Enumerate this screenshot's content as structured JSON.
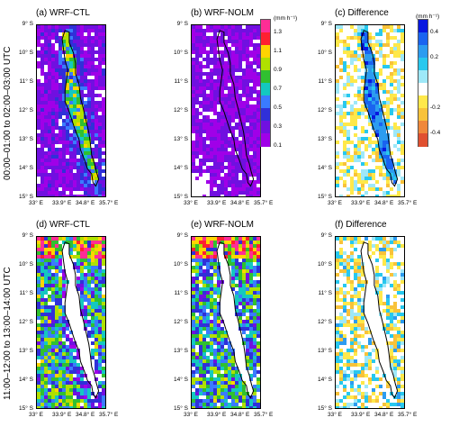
{
  "row_labels": [
    "00:00–01:00 to 02:00–03:00 UTC",
    "11:00–12:00 to 13:00–14:00 UTC"
  ],
  "panels": [
    {
      "title": "(a) WRF-CTL",
      "kind": "ctl_night"
    },
    {
      "title": "(b) WRF-NOLM",
      "kind": "nolm_night"
    },
    {
      "title": "(c) Difference",
      "kind": "diff_night"
    },
    {
      "title": "(d) WRF-CTL",
      "kind": "ctl_day"
    },
    {
      "title": "(e) WRF-NOLM",
      "kind": "nolm_day"
    },
    {
      "title": "(f) Difference",
      "kind": "diff_day"
    }
  ],
  "axes": {
    "x_ticks": [
      "33° E",
      "33.9° E",
      "34.8° E",
      "35.7° E"
    ],
    "y_ticks": [
      "9° S",
      "10° S",
      "11° S",
      "12° S",
      "13° S",
      "14° S",
      "15° S"
    ]
  },
  "colorbars": {
    "rain": {
      "unit": "(mm h⁻¹)",
      "ticks": [
        "1.3",
        "1.1",
        "0.9",
        "0.7",
        "0.5",
        "0.3",
        "0.1"
      ],
      "colors": [
        "#ff2d95",
        "#ff2030",
        "#ffd400",
        "#b0e000",
        "#30c030",
        "#14c8c0",
        "#3a7bff",
        "#3030d8",
        "#7010e0",
        "#a000e8"
      ]
    },
    "diff": {
      "unit": "(mm h⁻¹)",
      "ticks": [
        "0.4",
        "0.2",
        "-0.2",
        "-0.4"
      ],
      "colors": [
        "#0818e0",
        "#1a64f0",
        "#2c9cf0",
        "#28c8ee",
        "#9ee8f8",
        "#ffffff",
        "#ffe84a",
        "#f8c23a",
        "#f0883a",
        "#e05030"
      ]
    }
  },
  "chart_data": [
    {
      "type": "heatmap",
      "title": "(a) WRF-CTL",
      "ylabel": "00:00–01:00 to 02:00–03:00 UTC",
      "xlim": [
        "33° E",
        "35.7° E"
      ],
      "ylim": [
        "15° S",
        "9° S"
      ],
      "value_range": [
        0.1,
        1.3
      ],
      "dominant_range": [
        0.1,
        0.5
      ],
      "notes": "higher values 0.5–1.1 over the lake"
    },
    {
      "type": "heatmap",
      "title": "(b) WRF-NOLM",
      "xlim": [
        "33° E",
        "35.7° E"
      ],
      "ylim": [
        "15° S",
        "9° S"
      ],
      "value_range": [
        0.1,
        1.3
      ],
      "dominant_range": [
        0.1,
        0.3
      ]
    },
    {
      "type": "heatmap",
      "title": "(c) Difference",
      "xlim": [
        "33° E",
        "35.7° E"
      ],
      "ylim": [
        "15° S",
        "9° S"
      ],
      "value_range": [
        -0.4,
        0.4
      ],
      "notes": "positive 0.2–0.4 over the lake, small negatives around"
    },
    {
      "type": "heatmap",
      "title": "(d) WRF-CTL",
      "ylabel": "11:00–12:00 to 13:00–14:00 UTC",
      "xlim": [
        "33° E",
        "35.7° E"
      ],
      "ylim": [
        "15° S",
        "9° S"
      ],
      "value_range": [
        0.1,
        1.3
      ],
      "notes": "lake near zero; 0.5–1.3 over land"
    },
    {
      "type": "heatmap",
      "title": "(e) WRF-NOLM",
      "xlim": [
        "33° E",
        "35.7° E"
      ],
      "ylim": [
        "15° S",
        "9° S"
      ],
      "value_range": [
        0.1,
        1.3
      ],
      "notes": "similar to (d)"
    },
    {
      "type": "heatmap",
      "title": "(f) Difference",
      "xlim": [
        "33° E",
        "35.7° E"
      ],
      "ylim": [
        "15° S",
        "9° S"
      ],
      "value_range": [
        -0.4,
        0.4
      ],
      "notes": "mixed small positive and negative patches"
    }
  ]
}
